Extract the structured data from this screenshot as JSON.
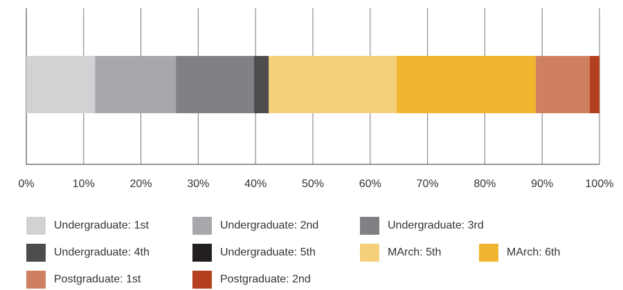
{
  "chart_data": {
    "type": "bar",
    "orientation": "horizontal",
    "stacked": true,
    "categories": [
      null
    ],
    "series": [
      {
        "name": "Undergraduate: 1st",
        "color": "#d1d2d4",
        "values": [
          12
        ]
      },
      {
        "name": "Undergraduate: 2nd",
        "color": "#a7a8ab",
        "values": [
          14.1
        ]
      },
      {
        "name": "Undergraduate: 3rd",
        "color": "#808184",
        "values": [
          13.6
        ]
      },
      {
        "name": "Undergraduate: 4th",
        "color": "#4d4d4f",
        "values": [
          2.6
        ]
      },
      {
        "name": "Undergraduate: 5th",
        "color": "#231f20",
        "values": [
          0
        ]
      },
      {
        "name": "MArch: 5th",
        "color": "#f5d07a",
        "values": [
          22.3
        ]
      },
      {
        "name": "MArch: 6th",
        "color": "#f0b52e",
        "values": [
          24.3
        ]
      },
      {
        "name": "Postgraduate: 1st",
        "color": "#cf8060",
        "values": [
          9.4
        ]
      },
      {
        "name": "Postgraduate: 2nd",
        "color": "#b5401f",
        "values": [
          1.7
        ]
      }
    ],
    "xlim": [
      0,
      100
    ],
    "xticks": [
      {
        "value": 0,
        "label": "0%"
      },
      {
        "value": 10,
        "label": "10%"
      },
      {
        "value": 20,
        "label": "20%"
      },
      {
        "value": 30,
        "label": "30%"
      },
      {
        "value": 40,
        "label": "40%"
      },
      {
        "value": 50,
        "label": "50%"
      },
      {
        "value": 60,
        "label": "60%"
      },
      {
        "value": 70,
        "label": "70%"
      },
      {
        "value": 80,
        "label": "80%"
      },
      {
        "value": 90,
        "label": "90%"
      },
      {
        "value": 100,
        "label": "100%"
      }
    ],
    "grid": true,
    "legend": "bottom"
  }
}
